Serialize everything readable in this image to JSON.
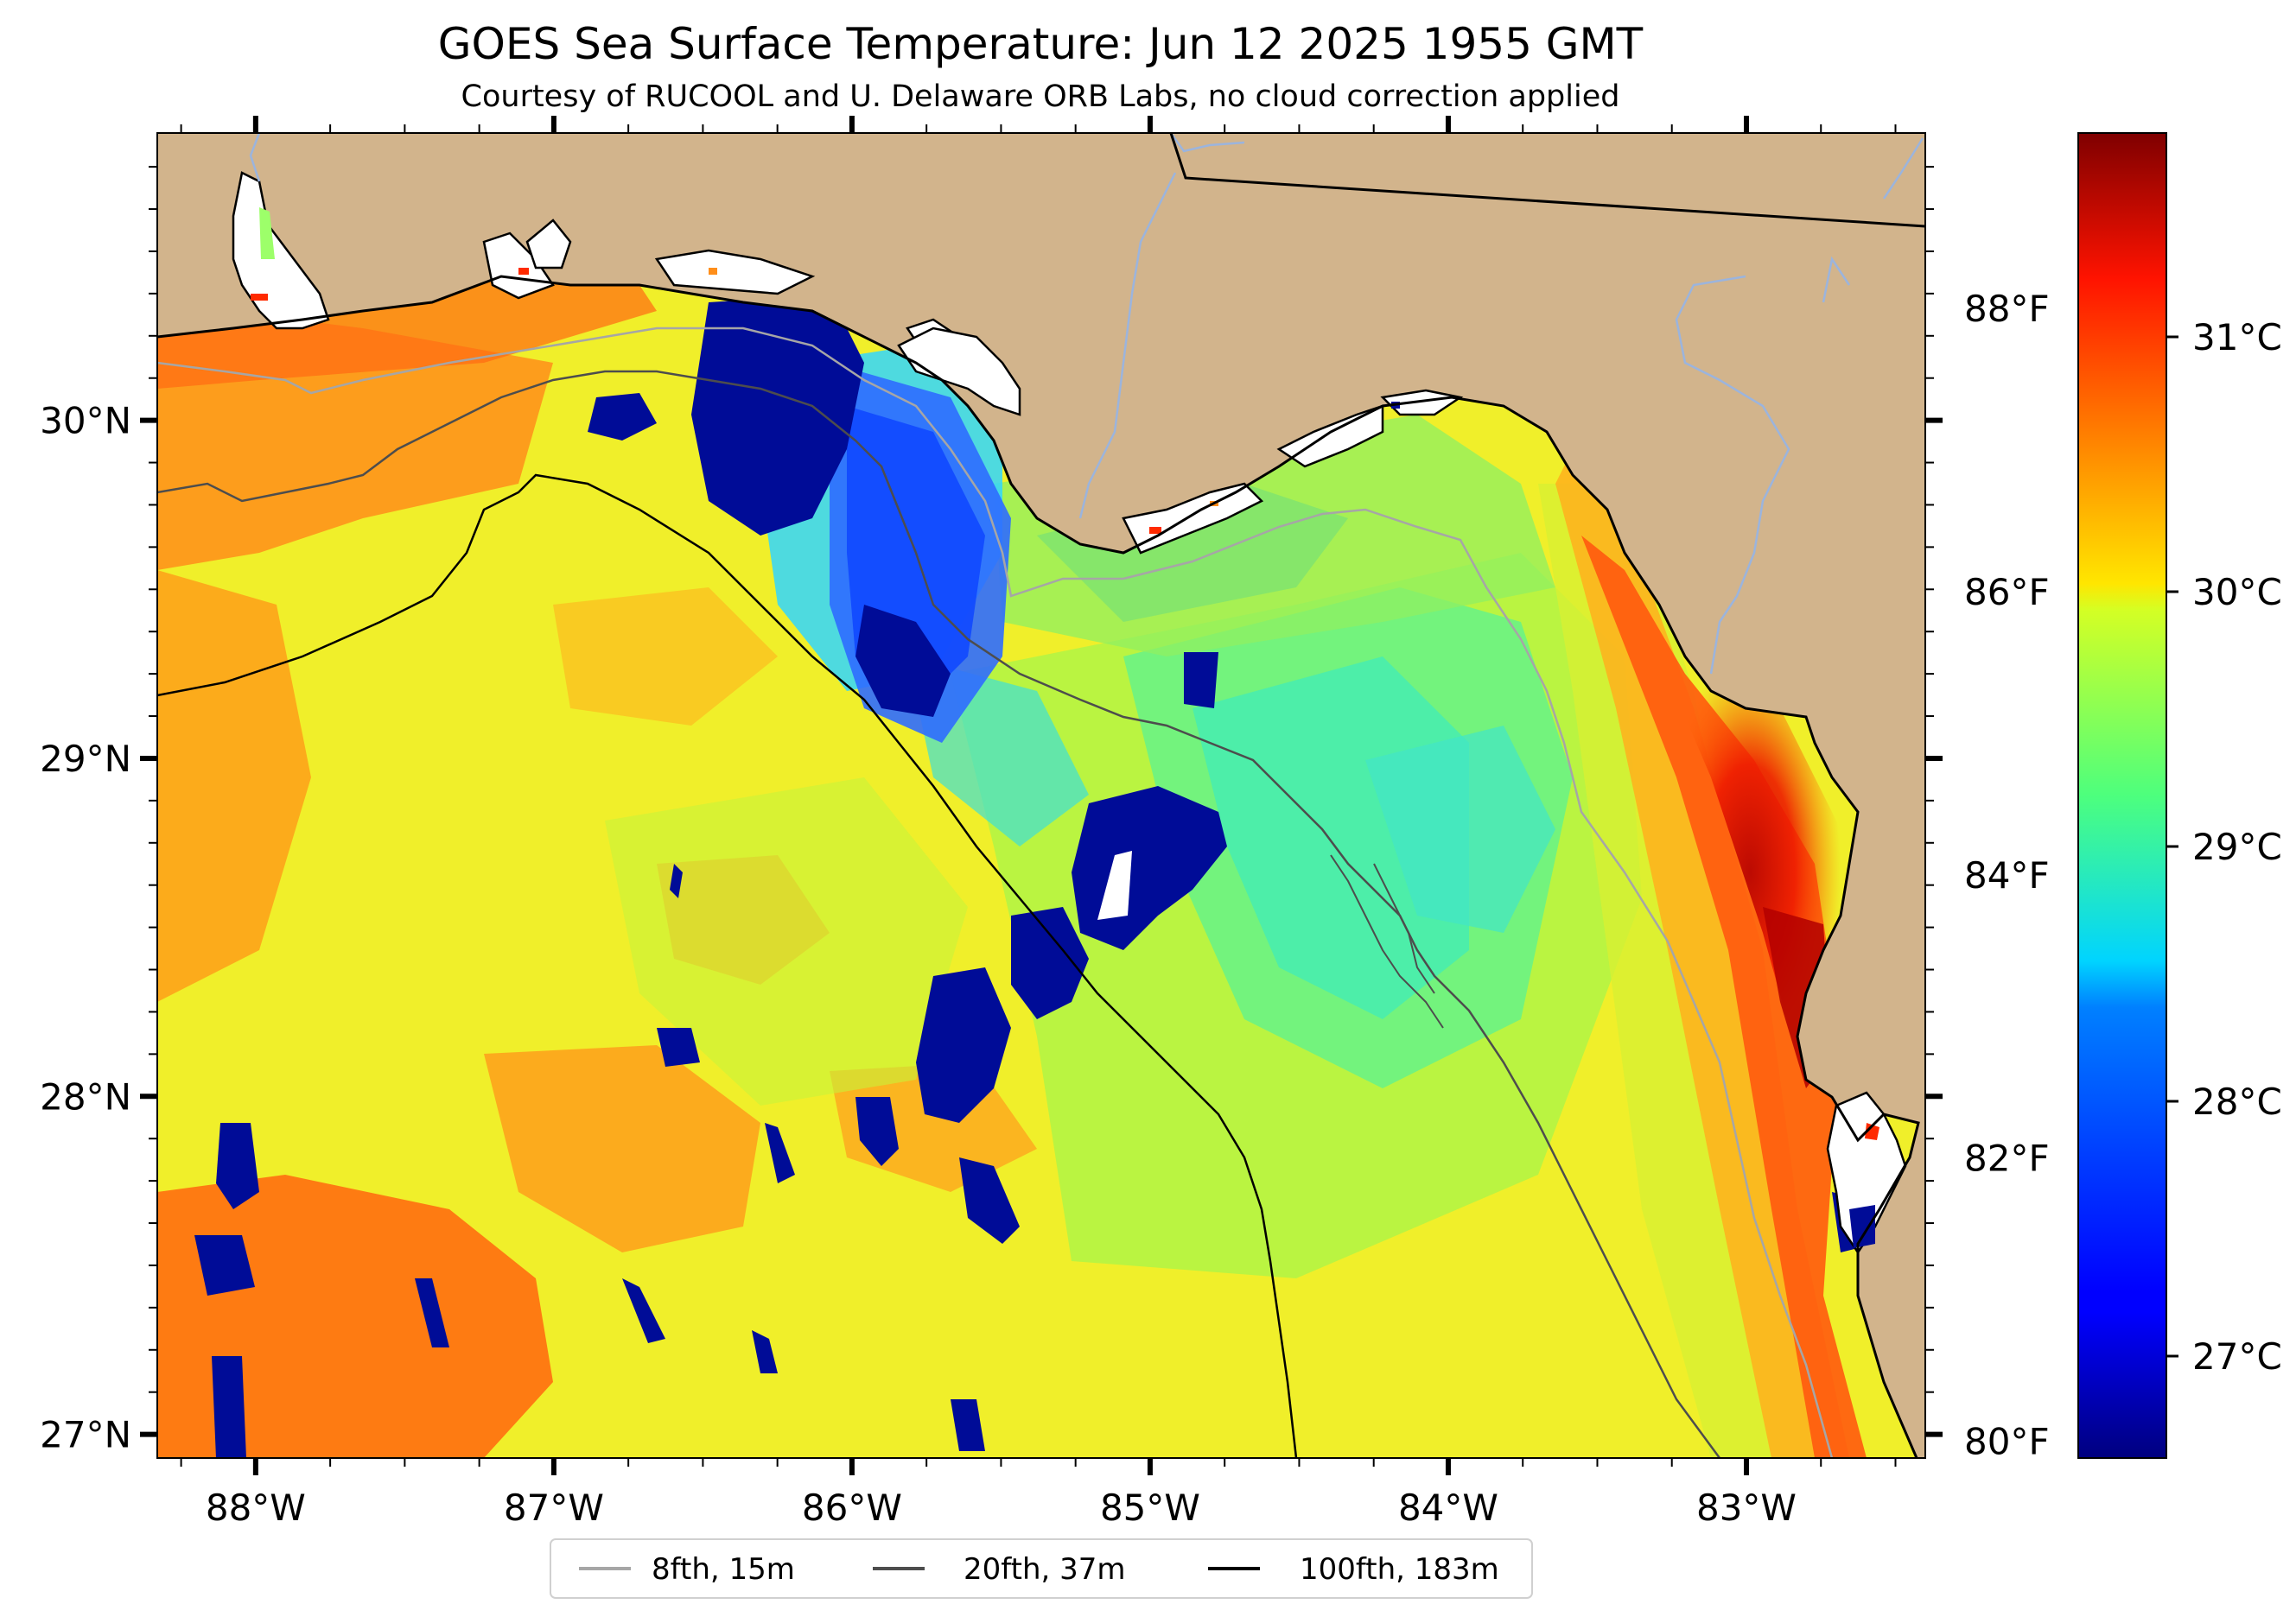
{
  "title": "GOES Sea Surface Temperature: Jun 12 2025 1955 GMT",
  "subtitle": "Courtesy of RUCOOL and U. Delaware ORB Labs, no cloud correction applied",
  "map": {
    "lon_range": [
      -88.33,
      -82.4
    ],
    "lat_range": [
      26.93,
      30.85
    ],
    "x_ticks": [
      {
        "value": -88,
        "label": "88°W"
      },
      {
        "value": -87,
        "label": "87°W"
      },
      {
        "value": -86,
        "label": "86°W"
      },
      {
        "value": -85,
        "label": "85°W"
      },
      {
        "value": -84,
        "label": "84°W"
      },
      {
        "value": -83,
        "label": "83°W"
      }
    ],
    "y_ticks": [
      {
        "value": 30,
        "label": "30°N"
      },
      {
        "value": 29,
        "label": "29°N"
      },
      {
        "value": 28,
        "label": "28°N"
      },
      {
        "value": 27,
        "label": "27°N"
      }
    ],
    "fahrenheit_ticks": [
      {
        "value": 88,
        "label": "88°F"
      },
      {
        "value": 86,
        "label": "86°F"
      },
      {
        "value": 84,
        "label": "84°F"
      },
      {
        "value": 82,
        "label": "82°F"
      },
      {
        "value": 80,
        "label": "80°F"
      }
    ],
    "land_color": "#d2b48c"
  },
  "colorbar": {
    "min_c": 26.6,
    "max_c": 31.8,
    "colormap": "jet",
    "ticks": [
      {
        "value": 31,
        "label": "31°C"
      },
      {
        "value": 30,
        "label": "30°C"
      },
      {
        "value": 29,
        "label": "29°C"
      },
      {
        "value": 28,
        "label": "28°C"
      },
      {
        "value": 27,
        "label": "27°C"
      }
    ]
  },
  "legend": {
    "items": [
      {
        "label": "8fth, 15m",
        "color": "#a6a6a6"
      },
      {
        "label": "20fth, 37m",
        "color": "#4d4d4d"
      },
      {
        "label": "100fth, 183m",
        "color": "#000000"
      }
    ]
  }
}
